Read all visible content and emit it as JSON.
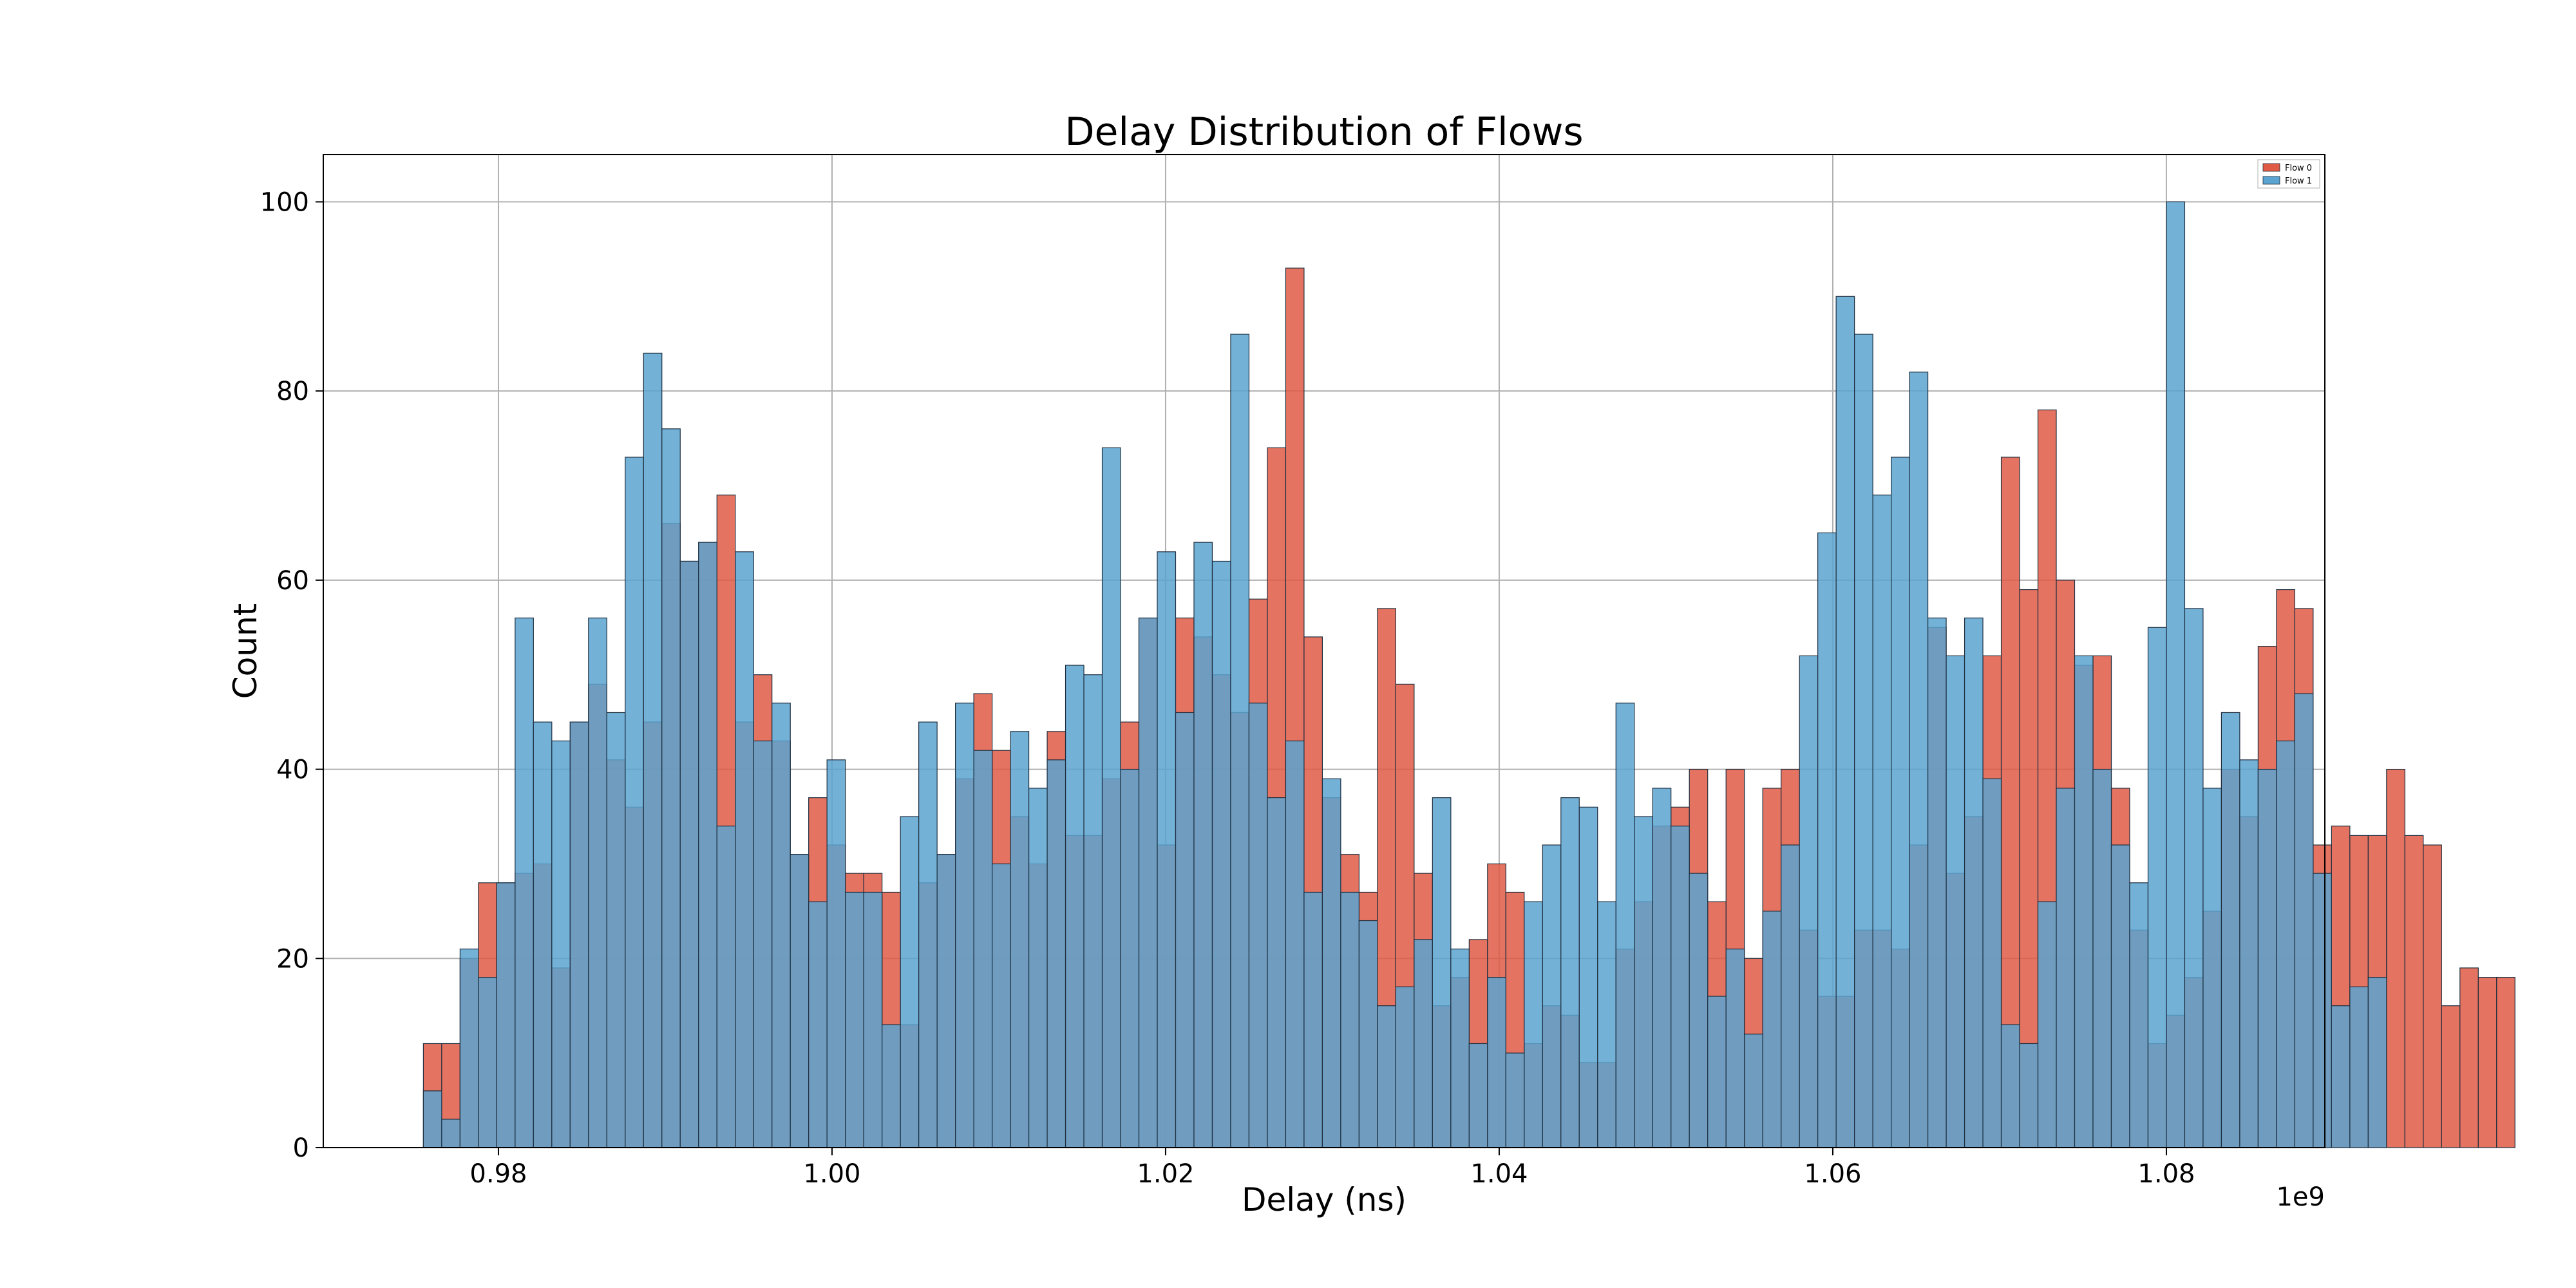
{
  "chart_data": {
    "type": "bar",
    "title": "Delay Distribution of Flows",
    "xlabel": "Delay (ns)",
    "ylabel": "Count",
    "x_offset_label": "1e9",
    "xlim": [
      0.9695,
      1.0895
    ],
    "ylim": [
      0,
      105
    ],
    "xticks": [
      0.98,
      1.0,
      1.02,
      1.04,
      1.06,
      1.08
    ],
    "xtick_labels": [
      "0.98",
      "1.00",
      "1.02",
      "1.04",
      "1.06",
      "1.08"
    ],
    "yticks": [
      0,
      20,
      40,
      60,
      80,
      100
    ],
    "ytick_labels": [
      "0",
      "20",
      "40",
      "60",
      "80",
      "100"
    ],
    "grid": true,
    "legend_position": "top-right",
    "bin_start": 0.9755,
    "bin_width": 0.0011,
    "series": [
      {
        "name": "Flow 0",
        "color": "#e15a45",
        "alpha": 0.85,
        "values": [
          11,
          11,
          20,
          28,
          28,
          29,
          30,
          19,
          45,
          49,
          41,
          36,
          45,
          66,
          62,
          64,
          69,
          45,
          50,
          43,
          31,
          37,
          32,
          29,
          29,
          27,
          13,
          28,
          31,
          39,
          48,
          42,
          35,
          30,
          44,
          33,
          33,
          39,
          45,
          56,
          32,
          56,
          54,
          50,
          46,
          58,
          74,
          93,
          54,
          37,
          31,
          27,
          57,
          49,
          29,
          15,
          18,
          22,
          30,
          27,
          11,
          15,
          14,
          9,
          9,
          21,
          26,
          34,
          36,
          40,
          26,
          40,
          20,
          38,
          40,
          23,
          16,
          16,
          23,
          23,
          21,
          32,
          55,
          29,
          35,
          52,
          73,
          59,
          78,
          60,
          51,
          52,
          38,
          23,
          11,
          14,
          18,
          25,
          40,
          35,
          53,
          59,
          57,
          32,
          34,
          33,
          33,
          40,
          33,
          32,
          15,
          19,
          18,
          18
        ]
      },
      {
        "name": "Flow 1",
        "color": "#5ba3d0",
        "alpha": 0.85,
        "values": [
          6,
          3,
          21,
          18,
          28,
          56,
          45,
          43,
          45,
          56,
          46,
          73,
          84,
          76,
          62,
          64,
          34,
          63,
          43,
          47,
          31,
          26,
          41,
          27,
          27,
          13,
          35,
          45,
          31,
          47,
          42,
          30,
          44,
          38,
          41,
          51,
          50,
          74,
          40,
          56,
          63,
          46,
          64,
          62,
          86,
          47,
          37,
          43,
          27,
          39,
          27,
          24,
          15,
          17,
          22,
          37,
          21,
          11,
          18,
          10,
          26,
          32,
          37,
          36,
          26,
          47,
          35,
          38,
          34,
          29,
          16,
          21,
          12,
          25,
          32,
          52,
          65,
          90,
          86,
          69,
          73,
          82,
          56,
          52,
          56,
          39,
          13,
          11,
          26,
          38,
          52,
          40,
          32,
          28,
          55,
          100,
          57,
          38,
          46,
          41,
          40,
          43,
          48,
          29,
          15,
          17,
          18
        ]
      }
    ]
  }
}
